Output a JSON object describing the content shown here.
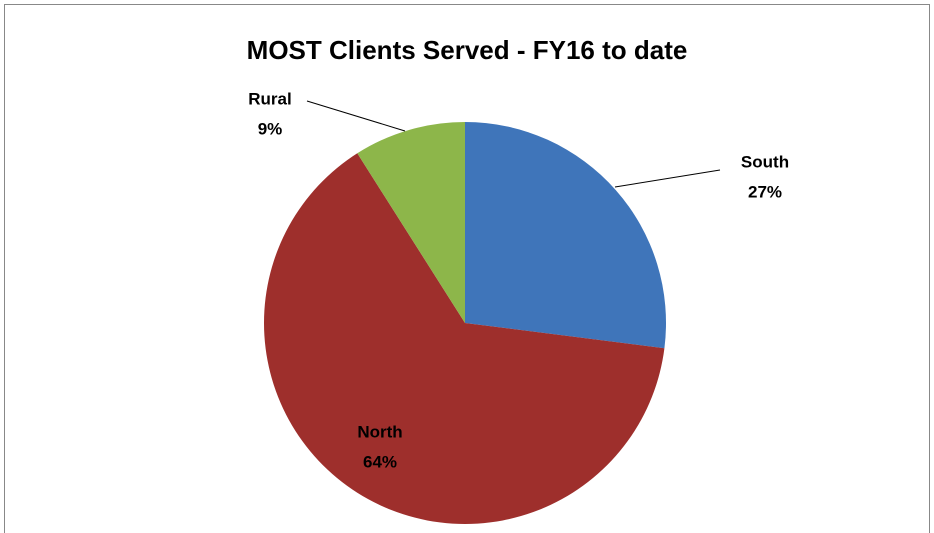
{
  "chart_data": {
    "type": "pie",
    "title": "MOST Clients Served - FY16 to date",
    "categories": [
      "South",
      "North",
      "Rural"
    ],
    "values": [
      27,
      64,
      9
    ],
    "value_labels": [
      "27%",
      "64%",
      "9%"
    ],
    "colors": [
      "#3f75ba",
      "#9e2f2c",
      "#8db64a"
    ]
  }
}
